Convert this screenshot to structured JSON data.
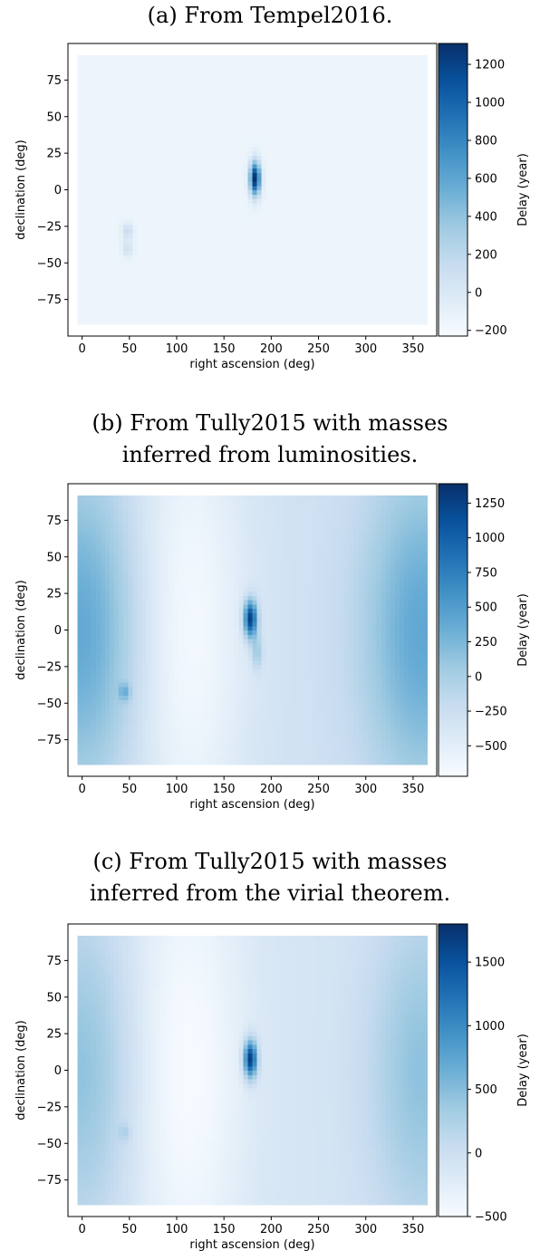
{
  "captions": {
    "a": "(a) From Tempel2016.",
    "b_line1": "(b) From Tully2015 with masses",
    "b_line2": "inferred from luminosities.",
    "c_line1": "(c) From Tully2015 with masses",
    "c_line2": "inferred from the virial theorem."
  },
  "colors": {
    "low": "#f7fbff",
    "high": "#08306b",
    "colormap": "Blues"
  },
  "chart_data": [
    {
      "type": "heatmap",
      "title": "(a) From Tempel2016.",
      "xlabel": "right ascension (deg)",
      "ylabel": "declination (deg)",
      "xlim": [
        -15,
        375
      ],
      "ylim": [
        -100,
        100
      ],
      "data_extent": {
        "ra": [
          -5,
          365
        ],
        "dec": [
          -92,
          92
        ]
      },
      "xticks": [
        0,
        50,
        100,
        150,
        200,
        250,
        300,
        350
      ],
      "yticks": [
        75,
        50,
        25,
        0,
        -25,
        -50,
        -75
      ],
      "colorbar": {
        "label": "Delay (year)",
        "range": [
          -230,
          1310
        ],
        "ticks": [
          1200,
          1000,
          800,
          600,
          400,
          200,
          0,
          -200
        ]
      },
      "baseline": -150,
      "features": [
        {
          "ra": 183,
          "dec": 8,
          "value": 1310
        },
        {
          "ra": 48,
          "dec": -28,
          "value": 130
        },
        {
          "ra": 48,
          "dec": -40,
          "value": 80
        }
      ]
    },
    {
      "type": "heatmap",
      "title": "(b) From Tully2015 with masses inferred from luminosities.",
      "xlabel": "right ascension (deg)",
      "ylabel": "declination (deg)",
      "xlim": [
        -15,
        375
      ],
      "ylim": [
        -100,
        100
      ],
      "data_extent": {
        "ra": [
          -5,
          365
        ],
        "dec": [
          -92,
          92
        ]
      },
      "xticks": [
        0,
        50,
        100,
        150,
        200,
        250,
        300,
        350
      ],
      "yticks": [
        75,
        50,
        25,
        0,
        -25,
        -50,
        -75
      ],
      "colorbar": {
        "label": "Delay (year)",
        "range": [
          -720,
          1390
        ],
        "ticks": [
          1250,
          1000,
          750,
          500,
          250,
          0,
          -250,
          -500
        ]
      },
      "baseline": -300,
      "features": [
        {
          "ra": 178,
          "dec": 8,
          "value": 1390
        },
        {
          "ra": 0,
          "dec": 0,
          "value": 400
        },
        {
          "ra": 360,
          "dec": 0,
          "value": 400
        },
        {
          "ra": 110,
          "dec": 0,
          "value": -700
        },
        {
          "ra": 185,
          "dec": -15,
          "value": 150
        },
        {
          "ra": 45,
          "dec": -42,
          "value": 150
        }
      ]
    },
    {
      "type": "heatmap",
      "title": "(c) From Tully2015 with masses inferred from the virial theorem.",
      "xlabel": "right ascension (deg)",
      "ylabel": "declination (deg)",
      "xlim": [
        -15,
        375
      ],
      "ylim": [
        -100,
        100
      ],
      "data_extent": {
        "ra": [
          -5,
          365
        ],
        "dec": [
          -92,
          92
        ]
      },
      "xticks": [
        0,
        50,
        100,
        150,
        200,
        250,
        300,
        350
      ],
      "yticks": [
        75,
        50,
        25,
        0,
        -25,
        -50,
        -75
      ],
      "colorbar": {
        "label": "Delay (year)",
        "range": [
          -500,
          1800
        ],
        "ticks": [
          1500,
          1000,
          500,
          0,
          -500
        ]
      },
      "baseline": -100,
      "features": [
        {
          "ra": 178,
          "dec": 8,
          "value": 1800
        },
        {
          "ra": 0,
          "dec": 0,
          "value": 450
        },
        {
          "ra": 360,
          "dec": 0,
          "value": 450
        },
        {
          "ra": 110,
          "dec": 0,
          "value": -500
        },
        {
          "ra": 45,
          "dec": -42,
          "value": 150
        }
      ]
    }
  ]
}
